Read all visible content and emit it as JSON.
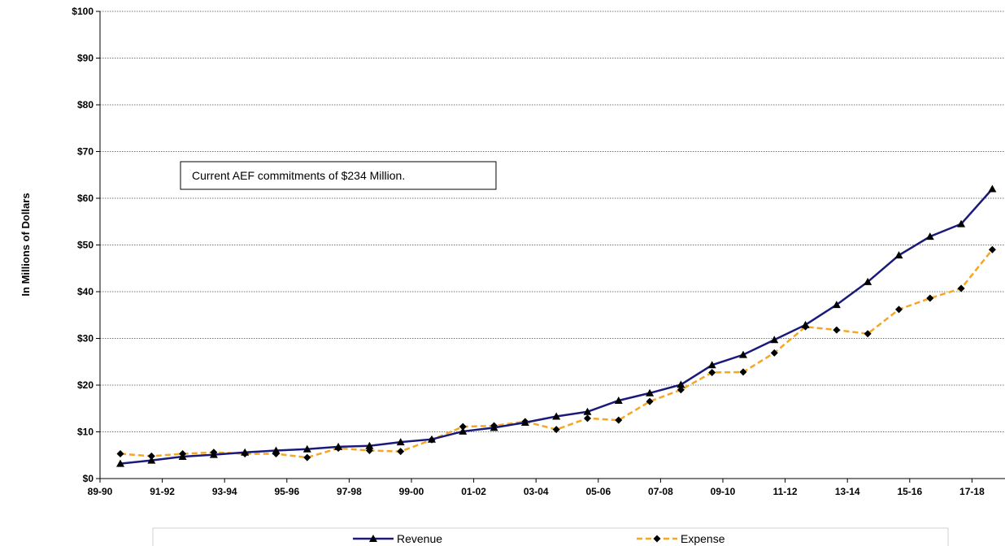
{
  "chart_data": {
    "type": "line",
    "categories": [
      "89-90",
      "90-91",
      "91-92",
      "92-93",
      "93-94",
      "94-95",
      "95-96",
      "96-97",
      "97-98",
      "98-99",
      "99-00",
      "00-01",
      "01-02",
      "02-03",
      "03-04",
      "04-05",
      "05-06",
      "06-07",
      "07-08",
      "08-09",
      "09-10",
      "10-11",
      "11-12",
      "12-13",
      "13-14",
      "14-15",
      "15-16",
      "16-17",
      "17-18"
    ],
    "tick_labels": [
      "89-90",
      "91-92",
      "93-94",
      "95-96",
      "97-98",
      "99-00",
      "01-02",
      "03-04",
      "05-06",
      "07-08",
      "09-10",
      "11-12",
      "13-14",
      "15-16",
      "17-18"
    ],
    "series": [
      {
        "name": "Revenue",
        "color": "#1a1a7a",
        "marker": "triangle",
        "line_style": "solid",
        "values": [
          3.2,
          3.9,
          4.7,
          5.1,
          5.6,
          6.0,
          6.3,
          6.8,
          7.0,
          7.8,
          8.4,
          10.1,
          10.9,
          12.0,
          13.3,
          14.3,
          16.7,
          18.3,
          20.1,
          24.3,
          26.5,
          29.7,
          32.9,
          37.2,
          42.1,
          47.8,
          51.8,
          54.5,
          62.0
        ]
      },
      {
        "name": "Expense",
        "color": "#f5a623",
        "marker": "diamond",
        "line_style": "dashed",
        "values": [
          5.3,
          4.8,
          5.3,
          5.6,
          5.3,
          5.3,
          4.5,
          6.5,
          6.0,
          5.8,
          8.3,
          11.1,
          11.3,
          12.2,
          10.5,
          12.9,
          12.5,
          16.5,
          19.0,
          22.7,
          22.8,
          26.9,
          32.5,
          31.8,
          31.0,
          36.2,
          38.6,
          40.7,
          49.0
        ]
      }
    ],
    "ylim": [
      0,
      100
    ],
    "ytick_step": 10,
    "ytick_labels": [
      "$0",
      "$10",
      "$20",
      "$30",
      "$40",
      "$50",
      "$60",
      "$70",
      "$80",
      "$90",
      "$100"
    ],
    "ylabel": "In Millions of Dollars",
    "xlabel": "",
    "title": "",
    "grid": "horizontal-dotted",
    "legend_position": "bottom",
    "annotation": "Current AEF commitments of $234 Million."
  }
}
